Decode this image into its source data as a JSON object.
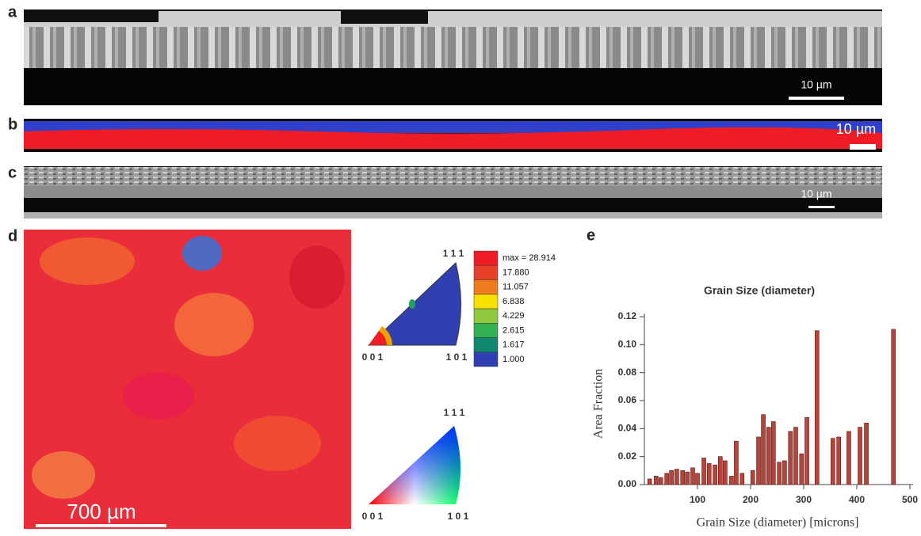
{
  "panels": {
    "a": {
      "label": "a",
      "scale": "10 µm"
    },
    "b": {
      "label": "b",
      "scale": "10 µm"
    },
    "c": {
      "label": "c",
      "scale": "10 µm"
    },
    "d": {
      "label": "d",
      "scale": "700 µm"
    },
    "e": {
      "label": "e"
    }
  },
  "ipf": {
    "contour_triangle": {
      "top": "1 1 1",
      "left": "0 0 1",
      "right": "1 0 1"
    },
    "legend": [
      "max = 28.914",
      "17.880",
      "11.057",
      "6.838",
      "4.229",
      "2.615",
      "1.617",
      "1.000"
    ],
    "color_triangle": {
      "top": "1 1 1",
      "left": "0 0 1",
      "right": "1 0 1"
    }
  },
  "chart_data": {
    "type": "bar",
    "title": "Grain Size (diameter)",
    "x_label": "Grain Size (diameter)  [microns]",
    "y_label": "Area Fraction",
    "x": [
      10,
      22,
      31,
      42,
      51,
      61,
      72,
      81,
      91,
      100,
      112,
      122,
      133,
      143,
      152,
      164,
      173,
      184,
      204,
      215,
      224,
      234,
      243,
      254,
      264,
      275,
      285,
      296,
      306,
      325,
      355,
      366,
      385,
      406,
      418,
      469
    ],
    "values": [
      0.004,
      0.006,
      0.005,
      0.008,
      0.01,
      0.011,
      0.01,
      0.009,
      0.012,
      0.008,
      0.019,
      0.015,
      0.014,
      0.02,
      0.017,
      0.006,
      0.031,
      0.008,
      0.01,
      0.034,
      0.05,
      0.041,
      0.045,
      0.016,
      0.017,
      0.038,
      0.041,
      0.022,
      0.048,
      0.11,
      0.033,
      0.034,
      0.038,
      0.041,
      0.044,
      0.111
    ],
    "color": "#b8433b",
    "xlim": [
      0,
      500
    ],
    "ylim": [
      0,
      0.12
    ],
    "xticks": [
      100,
      200,
      300,
      400,
      500
    ],
    "yticks": [
      {
        "value": 0,
        "label": "0.00"
      },
      0.02,
      0.04,
      0.06,
      0.08,
      {
        "value": 0.1,
        "label": "0.10"
      },
      0.12
    ]
  }
}
